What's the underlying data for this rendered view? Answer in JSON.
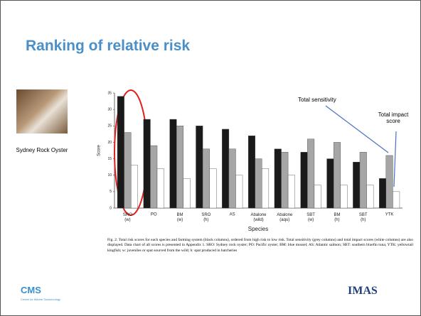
{
  "slide": {
    "title": "Ranking of relative risk",
    "image_caption": "Sydney Rock Oyster",
    "figure_caption": "Fig. 2. Total risk scores for each species and farming system (black columns), ordered from high risk to low risk. Total sensitivity (grey columns) and total impact scores (white columns) are also displayed. Data chart of all scores is presented in Appendix 1. SRO: Sydney rock oyster; PO: Pacific oyster; BM: blue mussel; AS: Atlantic salmon; SBT: southern bluefin tuna; YTK: yellowtail kingfish; w: juveniles or spat sourced from the wild; h: spat produced in hatcheries",
    "logo_left": "CMS",
    "logo_left_sub": "Centre for Marine Socioecology",
    "logo_right": "IMAS"
  },
  "chart_data": {
    "type": "bar",
    "x_label": "Species",
    "y_label": "Score",
    "categories": [
      "SRO (w)",
      "PO",
      "BM (w)",
      "SRO (h)",
      "AS",
      "Abalone (wild)",
      "Abalone (aqu)",
      "SBT (w)",
      "BM (h)",
      "SBT (h)",
      "YTK"
    ],
    "series": [
      {
        "color": "#1a1a1a",
        "values": [
          34,
          27,
          27,
          25,
          24,
          22,
          18,
          17,
          15,
          14,
          9
        ]
      },
      {
        "color": "#a6a6a6",
        "values": [
          23,
          19,
          25,
          18,
          18,
          15,
          17,
          21,
          20,
          17,
          16
        ]
      },
      {
        "color": "#ffffff",
        "values": [
          13,
          12,
          9,
          12,
          10,
          12,
          10,
          7,
          7,
          7,
          5
        ]
      }
    ],
    "ylim": [
      0,
      35
    ],
    "yticks": [
      0,
      5,
      10,
      15,
      20,
      25,
      30,
      35
    ],
    "annotations": [
      "Total sensitivity",
      "Total impact score"
    ]
  }
}
